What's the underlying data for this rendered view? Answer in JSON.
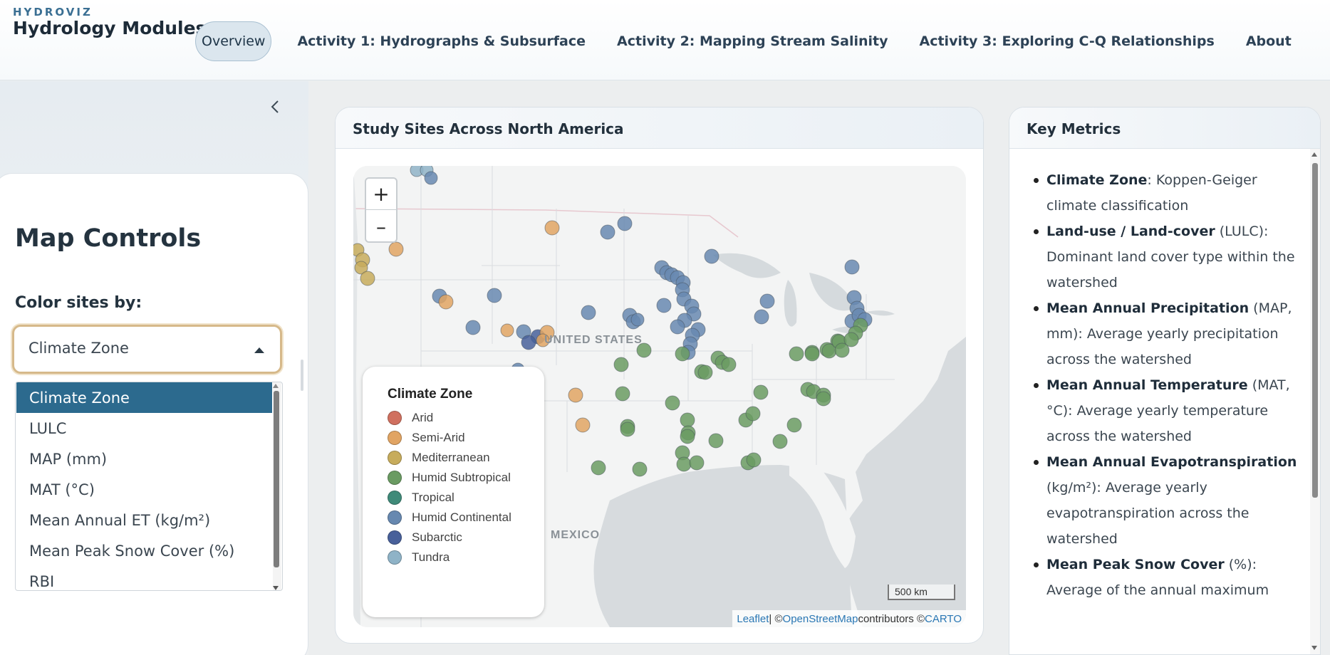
{
  "header": {
    "kicker": "HYDROVIZ",
    "title": "Hydrology Modules",
    "nav": [
      {
        "label": "Overview",
        "active": true
      },
      {
        "label": "Activity 1: Hydrographs & Subsurface"
      },
      {
        "label": "Activity 2: Mapping Stream Salinity"
      },
      {
        "label": "Activity 3: Exploring C-Q Relationships"
      },
      {
        "label": "About"
      }
    ]
  },
  "sidebar": {
    "collapse_icon": "chevron-left-icon",
    "title": "Map Controls",
    "color_by_label": "Color sites by:",
    "select_value": "Climate Zone",
    "options": [
      {
        "label": "Climate Zone",
        "selected": true
      },
      {
        "label": "LULC"
      },
      {
        "label": "MAP (mm)"
      },
      {
        "label": "MAT (°C)"
      },
      {
        "label": "Mean Annual ET (kg/m²)"
      },
      {
        "label": "Mean Peak Snow Cover (%)"
      },
      {
        "label": "RBI"
      }
    ]
  },
  "map": {
    "card_title": "Study Sites Across North America",
    "zoom_in": "+",
    "zoom_out": "–",
    "labels": {
      "us": "UNITED STATES",
      "mexico": "MEXICO"
    },
    "scale": "500 km",
    "attribution": {
      "leaflet": "Leaflet",
      "sep": " | © ",
      "osm": "OpenStreetMap",
      "contrib": " contributors © ",
      "carto": "CARTO"
    },
    "legend": {
      "title": "Climate Zone",
      "items": [
        {
          "label": "Arid",
          "color": "#d0705f"
        },
        {
          "label": "Semi-Arid",
          "color": "#e1a463"
        },
        {
          "label": "Mediterranean",
          "color": "#c7ac5c"
        },
        {
          "label": "Humid Subtropical",
          "color": "#6a9b62"
        },
        {
          "label": "Tropical",
          "color": "#3f8a79"
        },
        {
          "label": "Humid Continental",
          "color": "#6788b0"
        },
        {
          "label": "Subarctic",
          "color": "#48609a"
        },
        {
          "label": "Tundra",
          "color": "#8fb3c7"
        }
      ]
    }
  },
  "metrics": {
    "card_title": "Key Metrics",
    "items": [
      {
        "term": "Climate Zone",
        "text": ": Koppen-Geiger climate classification"
      },
      {
        "term": "Land-use / Land-cover",
        "text": " (LULC): Dominant land cover type within the watershed"
      },
      {
        "term": "Mean Annual Precipitation",
        "text": " (MAP, mm): Average yearly precipitation across the watershed"
      },
      {
        "term": "Mean Annual Temperature",
        "text": " (MAT, °C): Average yearly temperature across the watershed"
      },
      {
        "term": "Mean Annual Evapotranspiration",
        "text": " (kg/m²): Average yearly evapotranspiration across the watershed"
      },
      {
        "term": "Mean Peak Snow Cover",
        "text": " (%): Average of the annual maximum"
      }
    ]
  }
}
